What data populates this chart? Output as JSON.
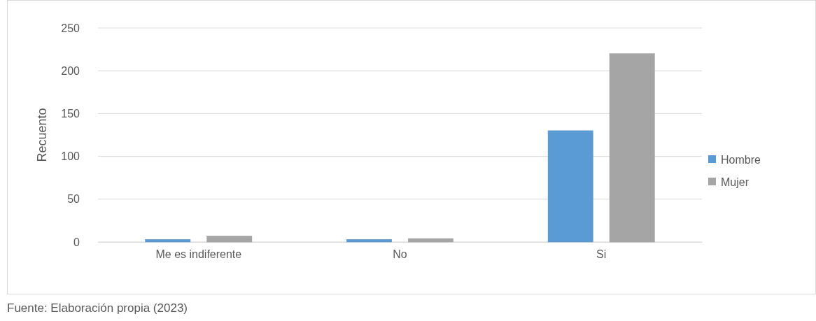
{
  "chart_data": {
    "type": "bar",
    "ylabel": "Recuento",
    "categories": [
      "Me es indiferente",
      "No",
      "Si"
    ],
    "series": [
      {
        "name": "Hombre",
        "color": "#5b9bd5",
        "values": [
          3,
          3,
          130
        ]
      },
      {
        "name": "Mujer",
        "color": "#a5a5a5",
        "values": [
          7,
          4,
          220
        ]
      }
    ],
    "ylim": [
      0,
      250
    ],
    "yticks": [
      0,
      50,
      100,
      150,
      200,
      250
    ],
    "grid": "y",
    "legend": "right",
    "annotations": [
      "Fuente: Elaboración propia (2023)"
    ]
  }
}
